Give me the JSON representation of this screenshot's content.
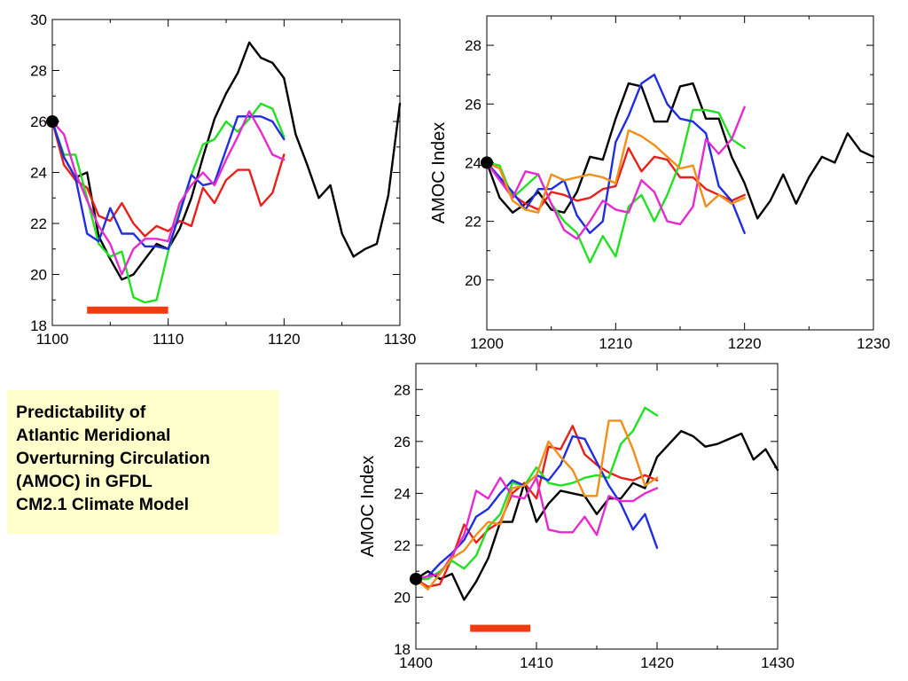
{
  "colors": {
    "black": "#000000",
    "red": "#e8201a",
    "green": "#22e022",
    "blue": "#1f2fe0",
    "magenta": "#e62ad1",
    "orange": "#f28e1a",
    "bar": "#f03a10",
    "caption_bg": "#ffffcc"
  },
  "caption": {
    "lines": [
      "Predictability of",
      "Atlantic Meridional",
      "Overturning Circulation",
      "(AMOC) in GFDL",
      "CM2.1 Climate Model"
    ]
  },
  "chart_data": [
    {
      "type": "line",
      "xlabel": "",
      "ylabel": "",
      "xlim": [
        1100,
        1130
      ],
      "ylim": [
        18,
        30
      ],
      "xticks": [
        1100,
        1110,
        1120,
        1130
      ],
      "yticks": [
        18,
        20,
        22,
        24,
        26,
        28,
        30
      ],
      "grid": false,
      "start_marker": {
        "x": 1100,
        "y": 26.0
      },
      "bar": {
        "x0": 1103,
        "x1": 1110,
        "y": 18.6
      },
      "series": [
        {
          "color": "black",
          "x": [
            1100,
            1101,
            1102,
            1103,
            1104,
            1105,
            1106,
            1107,
            1108,
            1109,
            1110,
            1111,
            1112,
            1113,
            1114,
            1115,
            1116,
            1117,
            1118,
            1119,
            1120,
            1121,
            1122,
            1123,
            1124,
            1125,
            1126,
            1127,
            1128,
            1129,
            1130
          ],
          "y": [
            26.0,
            24.6,
            23.8,
            24.0,
            21.5,
            20.6,
            19.8,
            20.0,
            20.6,
            21.2,
            21.0,
            21.8,
            23.0,
            24.6,
            26.1,
            27.1,
            27.9,
            29.1,
            28.5,
            28.3,
            27.7,
            25.5,
            24.3,
            23.0,
            23.5,
            21.6,
            20.7,
            21.0,
            21.2,
            23.1,
            26.7
          ]
        },
        {
          "color": "red",
          "x": [
            1100,
            1101,
            1102,
            1103,
            1104,
            1105,
            1106,
            1107,
            1108,
            1109,
            1110,
            1111,
            1112,
            1113,
            1114,
            1115,
            1116,
            1117,
            1118,
            1119,
            1120
          ],
          "y": [
            26.0,
            24.3,
            23.7,
            23.4,
            22.3,
            22.1,
            22.8,
            22.0,
            21.5,
            21.9,
            21.7,
            22.1,
            21.9,
            23.4,
            22.8,
            23.7,
            24.1,
            24.1,
            22.7,
            23.2,
            24.7
          ]
        },
        {
          "color": "green",
          "x": [
            1100,
            1101,
            1102,
            1103,
            1104,
            1105,
            1106,
            1107,
            1108,
            1109,
            1110,
            1111,
            1112,
            1113,
            1114,
            1115,
            1116,
            1117,
            1118,
            1119,
            1120
          ],
          "y": [
            26.0,
            24.7,
            24.7,
            23.0,
            21.2,
            20.7,
            20.9,
            19.1,
            18.9,
            19.0,
            20.9,
            22.5,
            23.9,
            25.1,
            25.3,
            26.0,
            25.6,
            26.1,
            26.7,
            26.5,
            25.4
          ]
        },
        {
          "color": "blue",
          "x": [
            1100,
            1101,
            1102,
            1103,
            1104,
            1105,
            1106,
            1107,
            1108,
            1109,
            1110,
            1111,
            1112,
            1113,
            1114,
            1115,
            1116,
            1117,
            1118,
            1119,
            1120
          ],
          "y": [
            26.0,
            24.6,
            23.8,
            21.6,
            21.3,
            22.6,
            21.6,
            21.6,
            21.1,
            21.1,
            21.0,
            22.4,
            23.9,
            23.5,
            23.6,
            24.9,
            26.2,
            26.2,
            26.2,
            26.0,
            25.3
          ]
        },
        {
          "color": "magenta",
          "x": [
            1100,
            1101,
            1102,
            1103,
            1104,
            1105,
            1106,
            1107,
            1108,
            1109,
            1110,
            1111,
            1112,
            1113,
            1114,
            1115,
            1116,
            1117,
            1118,
            1119,
            1120
          ],
          "y": [
            26.0,
            25.5,
            24.0,
            22.9,
            21.9,
            21.2,
            20.0,
            21.0,
            21.4,
            21.4,
            21.3,
            22.8,
            23.5,
            24.0,
            23.5,
            24.5,
            25.4,
            26.4,
            25.6,
            24.7,
            24.5
          ]
        }
      ]
    },
    {
      "type": "line",
      "xlabel": "",
      "ylabel": "AMOC Index",
      "xlim": [
        1200,
        1230
      ],
      "ylim": [
        18.3,
        29.0
      ],
      "xticks": [
        1200,
        1210,
        1220,
        1230
      ],
      "yticks": [
        20,
        22,
        24,
        26,
        28
      ],
      "grid": false,
      "start_marker": {
        "x": 1200,
        "y": 24.0
      },
      "series": [
        {
          "color": "black",
          "x": [
            1200,
            1201,
            1202,
            1203,
            1204,
            1205,
            1206,
            1207,
            1208,
            1209,
            1210,
            1211,
            1212,
            1213,
            1214,
            1215,
            1216,
            1217,
            1218,
            1219,
            1220,
            1221,
            1222,
            1223,
            1224,
            1225,
            1226,
            1227,
            1228,
            1229,
            1230
          ],
          "y": [
            24.0,
            22.8,
            22.3,
            22.6,
            23.0,
            22.4,
            22.3,
            23.0,
            24.2,
            24.1,
            25.5,
            26.7,
            26.6,
            25.4,
            25.4,
            26.6,
            26.7,
            25.5,
            25.5,
            24.2,
            23.3,
            22.1,
            22.7,
            23.6,
            22.6,
            23.5,
            24.2,
            24.0,
            25.0,
            24.4,
            24.2
          ]
        },
        {
          "color": "red",
          "x": [
            1200,
            1201,
            1202,
            1203,
            1204,
            1205,
            1206,
            1207,
            1208,
            1209,
            1210,
            1211,
            1212,
            1213,
            1214,
            1215,
            1216,
            1217,
            1218,
            1219,
            1220
          ],
          "y": [
            24.0,
            23.5,
            22.9,
            22.6,
            22.4,
            23.0,
            22.9,
            22.7,
            22.8,
            23.1,
            23.2,
            24.5,
            23.7,
            24.2,
            24.1,
            23.5,
            23.5,
            23.1,
            22.9,
            22.7,
            22.9
          ]
        },
        {
          "color": "green",
          "x": [
            1200,
            1201,
            1202,
            1203,
            1204,
            1205,
            1206,
            1207,
            1208,
            1209,
            1210,
            1211,
            1212,
            1213,
            1214,
            1215,
            1216,
            1217,
            1218,
            1219,
            1220
          ],
          "y": [
            24.0,
            23.9,
            22.8,
            23.2,
            23.6,
            22.6,
            22.0,
            21.6,
            20.6,
            21.5,
            20.8,
            22.5,
            22.9,
            22.0,
            22.9,
            24.0,
            25.8,
            25.8,
            25.7,
            24.8,
            24.5
          ]
        },
        {
          "color": "blue",
          "x": [
            1200,
            1201,
            1202,
            1203,
            1204,
            1205,
            1206,
            1207,
            1208,
            1209,
            1210,
            1211,
            1212,
            1213,
            1214,
            1215,
            1216,
            1217,
            1218,
            1219,
            1220
          ],
          "y": [
            24.0,
            23.5,
            23.0,
            22.4,
            23.1,
            23.1,
            23.4,
            22.2,
            21.6,
            22.0,
            24.7,
            25.6,
            26.7,
            27.0,
            26.0,
            25.5,
            25.4,
            25.0,
            23.2,
            22.7,
            21.6
          ]
        },
        {
          "color": "magenta",
          "x": [
            1200,
            1201,
            1202,
            1203,
            1204,
            1205,
            1206,
            1207,
            1208,
            1209,
            1210,
            1211,
            1212,
            1213,
            1214,
            1215,
            1216,
            1217,
            1218,
            1219,
            1220
          ],
          "y": [
            24.0,
            23.4,
            22.8,
            23.7,
            23.6,
            22.6,
            21.7,
            21.4,
            22.0,
            22.7,
            22.4,
            22.3,
            23.4,
            23.0,
            22.0,
            21.9,
            22.5,
            24.8,
            24.3,
            24.8,
            25.9
          ]
        },
        {
          "color": "orange",
          "x": [
            1200,
            1201,
            1202,
            1203,
            1204,
            1205,
            1206,
            1207,
            1208,
            1209,
            1210,
            1211,
            1212,
            1213,
            1214,
            1215,
            1216,
            1217,
            1218,
            1219,
            1220
          ],
          "y": [
            24.0,
            23.8,
            22.7,
            22.4,
            22.3,
            23.6,
            23.4,
            23.5,
            23.6,
            23.5,
            23.3,
            25.1,
            24.9,
            24.6,
            24.2,
            23.8,
            23.9,
            22.5,
            22.9,
            22.6,
            22.8
          ]
        }
      ]
    },
    {
      "type": "line",
      "xlabel": "",
      "ylabel": "AMOC Index",
      "xlim": [
        1400,
        1430
      ],
      "ylim": [
        18,
        29
      ],
      "xticks": [
        1400,
        1410,
        1420,
        1430
      ],
      "yticks": [
        18,
        20,
        22,
        24,
        26,
        28
      ],
      "grid": false,
      "start_marker": {
        "x": 1400,
        "y": 20.7
      },
      "bar": {
        "x0": 1404.5,
        "x1": 1409.5,
        "y": 18.8
      },
      "series": [
        {
          "color": "black",
          "x": [
            1400,
            1401,
            1402,
            1403,
            1404,
            1405,
            1406,
            1407,
            1408,
            1409,
            1410,
            1411,
            1412,
            1413,
            1414,
            1415,
            1416,
            1417,
            1418,
            1419,
            1420,
            1421,
            1422,
            1423,
            1424,
            1425,
            1426,
            1427,
            1428,
            1429,
            1430
          ],
          "y": [
            20.7,
            21.0,
            20.7,
            20.9,
            19.9,
            20.6,
            21.5,
            22.9,
            22.9,
            24.4,
            22.9,
            23.6,
            24.1,
            24.0,
            23.9,
            23.2,
            23.8,
            23.8,
            24.4,
            24.2,
            25.4,
            25.9,
            26.4,
            26.2,
            25.8,
            25.9,
            26.1,
            26.3,
            25.3,
            25.7,
            24.9
          ]
        },
        {
          "color": "red",
          "x": [
            1400,
            1401,
            1402,
            1403,
            1404,
            1405,
            1406,
            1407,
            1408,
            1409,
            1410,
            1411,
            1412,
            1413,
            1414,
            1415,
            1416,
            1417,
            1418,
            1419,
            1420
          ],
          "y": [
            20.7,
            20.4,
            20.5,
            21.5,
            22.8,
            22.1,
            22.6,
            22.9,
            24.0,
            24.4,
            23.8,
            25.8,
            25.7,
            26.6,
            25.5,
            25.1,
            24.8,
            24.6,
            24.5,
            24.7,
            24.5
          ]
        },
        {
          "color": "green",
          "x": [
            1400,
            1401,
            1402,
            1403,
            1404,
            1405,
            1406,
            1407,
            1408,
            1409,
            1410,
            1411,
            1412,
            1413,
            1414,
            1415,
            1416,
            1417,
            1418,
            1419,
            1420
          ],
          "y": [
            20.7,
            20.7,
            21.0,
            21.4,
            21.1,
            21.6,
            22.7,
            23.2,
            24.4,
            24.3,
            25.0,
            24.4,
            24.3,
            24.4,
            24.6,
            24.7,
            24.6,
            25.9,
            26.4,
            27.3,
            27.0
          ]
        },
        {
          "color": "blue",
          "x": [
            1400,
            1401,
            1402,
            1403,
            1404,
            1405,
            1406,
            1407,
            1408,
            1409,
            1410,
            1411,
            1412,
            1413,
            1414,
            1415,
            1416,
            1417,
            1418,
            1419,
            1420
          ],
          "y": [
            20.7,
            20.8,
            21.3,
            21.7,
            22.2,
            23.1,
            23.4,
            24.0,
            24.5,
            24.3,
            24.7,
            24.5,
            25.1,
            26.2,
            26.1,
            25.2,
            24.3,
            23.6,
            22.6,
            23.2,
            21.9
          ]
        },
        {
          "color": "magenta",
          "x": [
            1400,
            1401,
            1402,
            1403,
            1404,
            1405,
            1406,
            1407,
            1408,
            1409,
            1410,
            1411,
            1412,
            1413,
            1414,
            1415,
            1416,
            1417,
            1418,
            1419,
            1420
          ],
          "y": [
            20.7,
            20.8,
            20.9,
            21.6,
            22.4,
            24.1,
            23.8,
            24.6,
            23.9,
            23.8,
            24.6,
            22.6,
            22.5,
            22.5,
            23.1,
            22.4,
            23.9,
            23.7,
            23.7,
            24.0,
            24.2
          ]
        },
        {
          "color": "orange",
          "x": [
            1400,
            1401,
            1402,
            1403,
            1404,
            1405,
            1406,
            1407,
            1408,
            1409,
            1410,
            1411,
            1412,
            1413,
            1414,
            1415,
            1416,
            1417,
            1418,
            1419,
            1420
          ],
          "y": [
            20.7,
            20.3,
            20.9,
            21.5,
            21.8,
            22.4,
            22.9,
            22.8,
            24.2,
            24.3,
            24.7,
            26.0,
            25.4,
            24.9,
            23.9,
            23.9,
            26.8,
            26.8,
            25.7,
            24.3,
            24.6
          ]
        }
      ]
    }
  ]
}
